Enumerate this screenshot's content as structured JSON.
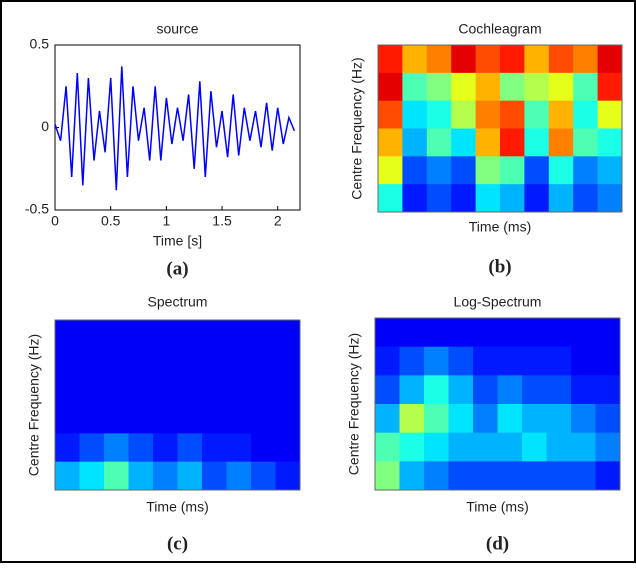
{
  "chart_data": [
    {
      "type": "line",
      "title": "source",
      "xlabel": "Time [s]",
      "caption": "(a)",
      "color": "#0000ff",
      "xlim": [
        0,
        2.2
      ],
      "ylim": [
        -0.5,
        0.5
      ],
      "xticks": [
        0,
        0.5,
        1,
        1.5,
        2
      ],
      "yticks": [
        -0.5,
        0,
        0.5
      ],
      "x": [
        0,
        0.05,
        0.1,
        0.15,
        0.2,
        0.25,
        0.3,
        0.35,
        0.4,
        0.45,
        0.5,
        0.55,
        0.6,
        0.65,
        0.7,
        0.75,
        0.8,
        0.85,
        0.9,
        0.95,
        1.0,
        1.05,
        1.1,
        1.15,
        1.2,
        1.25,
        1.3,
        1.35,
        1.4,
        1.45,
        1.5,
        1.55,
        1.6,
        1.65,
        1.7,
        1.75,
        1.8,
        1.85,
        1.9,
        1.95,
        2.0,
        2.05,
        2.1,
        2.15
      ],
      "values": [
        0.02,
        -0.08,
        0.25,
        -0.3,
        0.33,
        -0.35,
        0.3,
        -0.2,
        0.1,
        -0.15,
        0.3,
        -0.38,
        0.37,
        -0.3,
        0.25,
        -0.08,
        0.12,
        -0.2,
        0.25,
        -0.2,
        0.18,
        -0.1,
        0.12,
        -0.08,
        0.2,
        -0.25,
        0.28,
        -0.3,
        0.22,
        -0.12,
        0.1,
        -0.18,
        0.2,
        -0.17,
        0.12,
        -0.08,
        0.1,
        -0.12,
        0.15,
        -0.14,
        0.12,
        -0.1,
        0.06,
        -0.02
      ]
    },
    {
      "type": "heatmap",
      "title": "Cochleagram",
      "xlabel": "Time (ms)",
      "ylabel": "Centre Frequency (Hz)",
      "caption": "(b)",
      "colormap": "jet",
      "z": [
        [
          0.85,
          0.7,
          0.75,
          0.9,
          0.8,
          0.85,
          0.7,
          0.8,
          0.75,
          0.9
        ],
        [
          0.9,
          0.45,
          0.5,
          0.6,
          0.7,
          0.5,
          0.55,
          0.6,
          0.45,
          0.85
        ],
        [
          0.8,
          0.35,
          0.4,
          0.55,
          0.75,
          0.8,
          0.45,
          0.7,
          0.4,
          0.6
        ],
        [
          0.7,
          0.3,
          0.45,
          0.35,
          0.7,
          0.85,
          0.4,
          0.75,
          0.45,
          0.4
        ],
        [
          0.6,
          0.2,
          0.25,
          0.2,
          0.5,
          0.45,
          0.2,
          0.4,
          0.25,
          0.3
        ],
        [
          0.4,
          0.15,
          0.2,
          0.15,
          0.35,
          0.3,
          0.15,
          0.3,
          0.2,
          0.25
        ]
      ]
    },
    {
      "type": "heatmap",
      "title": "Spectrum",
      "xlabel": "Time (ms)",
      "ylabel": "Centre Frequency (Hz)",
      "caption": "(c)",
      "colormap": "jet",
      "z": [
        [
          0.12,
          0.12,
          0.12,
          0.12,
          0.12,
          0.12,
          0.12,
          0.12,
          0.12,
          0.12
        ],
        [
          0.12,
          0.12,
          0.12,
          0.12,
          0.12,
          0.12,
          0.12,
          0.12,
          0.12,
          0.12
        ],
        [
          0.12,
          0.12,
          0.12,
          0.12,
          0.12,
          0.12,
          0.12,
          0.12,
          0.12,
          0.12
        ],
        [
          0.12,
          0.12,
          0.12,
          0.12,
          0.12,
          0.12,
          0.12,
          0.12,
          0.12,
          0.12
        ],
        [
          0.15,
          0.2,
          0.25,
          0.2,
          0.15,
          0.2,
          0.15,
          0.15,
          0.12,
          0.12
        ],
        [
          0.3,
          0.35,
          0.45,
          0.3,
          0.25,
          0.3,
          0.2,
          0.25,
          0.2,
          0.15
        ]
      ]
    },
    {
      "type": "heatmap",
      "title": "Log-Spectrum",
      "xlabel": "Time (ms)",
      "ylabel": "Centre Frequency (Hz)",
      "caption": "(d)",
      "colormap": "jet",
      "z": [
        [
          0.12,
          0.12,
          0.12,
          0.12,
          0.12,
          0.12,
          0.12,
          0.12,
          0.12,
          0.12
        ],
        [
          0.15,
          0.2,
          0.25,
          0.2,
          0.15,
          0.15,
          0.15,
          0.15,
          0.12,
          0.12
        ],
        [
          0.2,
          0.3,
          0.4,
          0.3,
          0.2,
          0.25,
          0.2,
          0.2,
          0.15,
          0.15
        ],
        [
          0.3,
          0.55,
          0.45,
          0.35,
          0.25,
          0.35,
          0.3,
          0.3,
          0.25,
          0.2
        ],
        [
          0.45,
          0.4,
          0.35,
          0.3,
          0.3,
          0.3,
          0.35,
          0.3,
          0.3,
          0.25
        ],
        [
          0.5,
          0.3,
          0.25,
          0.2,
          0.2,
          0.2,
          0.2,
          0.2,
          0.2,
          0.15
        ]
      ]
    }
  ]
}
